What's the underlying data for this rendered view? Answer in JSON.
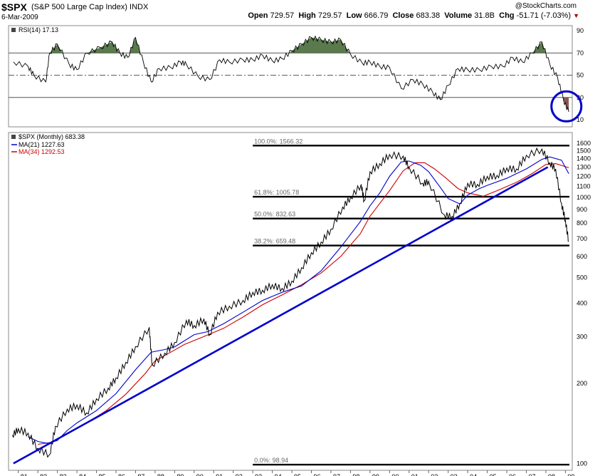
{
  "header": {
    "symbol": "$SPX",
    "name": "(S&P 500 Large Cap Index)",
    "exchange": "INDX",
    "date": "6-Mar-2009",
    "watermark": "@StockCharts.com",
    "quote": {
      "open_label": "Open",
      "open": "729.57",
      "high_label": "High",
      "high": "729.57",
      "low_label": "Low",
      "low": "666.79",
      "close_label": "Close",
      "close": "683.38",
      "volume_label": "Volume",
      "volume": "31.8B",
      "chg_label": "Chg",
      "chg": "-51.71 (-7.03%)"
    }
  },
  "chart_data": [
    {
      "type": "line",
      "panel": "indicator",
      "legend": [
        "RSI(14) 17.13"
      ],
      "ylim": [
        0,
        100
      ],
      "yticks": [
        90,
        70,
        50,
        30,
        10
      ],
      "reference_lines": [
        70,
        50,
        30
      ],
      "overbought_fill": "#5a7a4e",
      "oversold_fill": "#8a5a52",
      "x": [
        1980.75,
        1981.5,
        1981.8,
        1982.4,
        1982.6,
        1983.0,
        1983.6,
        1984.0,
        1984.5,
        1985.2,
        1985.8,
        1986.2,
        1986.6,
        1987.0,
        1987.4,
        1987.8,
        1988.2,
        1988.8,
        1989.3,
        1989.6,
        1990.2,
        1990.8,
        1991.3,
        1991.8,
        1992.5,
        1993.0,
        1993.5,
        1994.0,
        1994.5,
        1995.0,
        1995.5,
        1996.0,
        1996.5,
        1997.0,
        1997.5,
        1998.0,
        1998.6,
        1999.0,
        1999.5,
        2000.0,
        2000.6,
        2001.2,
        2001.7,
        2002.2,
        2002.6,
        2003.0,
        2003.5,
        2004.0,
        2004.6,
        2005.2,
        2005.8,
        2006.3,
        2006.8,
        2007.3,
        2007.8,
        2008.2,
        2008.6,
        2008.9,
        2009.17
      ],
      "values": [
        62,
        58,
        50,
        44,
        70,
        78,
        60,
        55,
        70,
        75,
        80,
        70,
        66,
        84,
        62,
        44,
        56,
        57,
        62,
        60,
        49,
        46,
        64,
        62,
        64,
        64,
        68,
        63,
        65,
        72,
        78,
        84,
        82,
        80,
        82,
        69,
        61,
        62,
        58,
        57,
        38,
        46,
        42,
        35,
        28,
        41,
        56,
        55,
        55,
        58,
        58,
        66,
        62,
        70,
        80,
        60,
        48,
        28,
        17.13
      ]
    },
    {
      "type": "line",
      "panel": "price",
      "title": "$SPX (Monthly) 683.38",
      "legend": [
        "MA(21) 1227.63",
        "MA(34) 1292.53"
      ],
      "y_scale": "log",
      "ylim": [
        96,
        1700
      ],
      "yticks": [
        1600,
        1500,
        1400,
        1300,
        1200,
        1100,
        1000,
        900,
        800,
        700,
        600,
        500,
        400,
        300,
        200,
        100
      ],
      "xlim": [
        1980.5,
        2009.35
      ],
      "xticks": [
        "81",
        "82",
        "83",
        "84",
        "85",
        "86",
        "87",
        "88",
        "89",
        "90",
        "91",
        "92",
        "93",
        "94",
        "95",
        "96",
        "97",
        "98",
        "99",
        "00",
        "01",
        "02",
        "03",
        "04",
        "05",
        "06",
        "07",
        "08",
        "09"
      ],
      "series": [
        {
          "legend": "price",
          "color": "#000000",
          "x": [
            1980.7,
            1981.0,
            1981.5,
            1982.0,
            1982.6,
            1982.9,
            1983.5,
            1984.0,
            1984.5,
            1985.0,
            1985.6,
            1986.0,
            1986.5,
            1987.0,
            1987.7,
            1987.85,
            1988.5,
            1989.0,
            1989.6,
            1990.0,
            1990.5,
            1990.8,
            1991.2,
            1991.8,
            1992.5,
            1993.0,
            1993.5,
            1994.0,
            1994.5,
            1995.0,
            1995.5,
            1996.0,
            1996.5,
            1997.0,
            1997.6,
            1998.0,
            1998.55,
            1998.7,
            1999.0,
            1999.5,
            2000.0,
            2000.7,
            2001.0,
            2001.7,
            2002.0,
            2002.8,
            2003.2,
            2003.6,
            2004.0,
            2004.5,
            2005.0,
            2005.5,
            2006.0,
            2006.5,
            2007.0,
            2007.8,
            2008.2,
            2008.5,
            2008.8,
            2009.0,
            2009.17
          ],
          "values": [
            128,
            135,
            130,
            114,
            108,
            138,
            160,
            166,
            155,
            175,
            192,
            210,
            240,
            275,
            325,
            235,
            260,
            285,
            345,
            330,
            350,
            305,
            370,
            390,
            410,
            440,
            448,
            470,
            455,
            485,
            545,
            620,
            680,
            760,
            920,
            1000,
            1120,
            970,
            1250,
            1340,
            1450,
            1430,
            1300,
            1130,
            1150,
            860,
            850,
            950,
            1130,
            1120,
            1200,
            1210,
            1290,
            1280,
            1440,
            1520,
            1350,
            1280,
            950,
            820,
            683.38
          ]
        },
        {
          "legend": "MA(21) 1227.63",
          "color": "#0000cc",
          "x": [
            1981.5,
            1982.0,
            1982.5,
            1983.0,
            1983.5,
            1984.0,
            1985.0,
            1986.0,
            1987.0,
            1987.8,
            1988.5,
            1989.0,
            1990.0,
            1990.7,
            1991.5,
            1992.5,
            1993.5,
            1994.5,
            1995.5,
            1996.5,
            1997.5,
            1998.5,
            1999.0,
            1999.5,
            2000.0,
            2000.6,
            2001.0,
            2001.6,
            2002.0,
            2002.6,
            2003.0,
            2003.6,
            2004.0,
            2004.6,
            2005.0,
            2006.0,
            2007.0,
            2007.8,
            2008.2,
            2008.8,
            2009.17
          ],
          "values": [
            126,
            121,
            119,
            122,
            133,
            142,
            158,
            183,
            225,
            262,
            268,
            274,
            305,
            313,
            335,
            370,
            410,
            440,
            465,
            530,
            650,
            810,
            930,
            1040,
            1200,
            1360,
            1370,
            1320,
            1250,
            1090,
            990,
            945,
            1020,
            1080,
            1110,
            1180,
            1280,
            1390,
            1420,
            1380,
            1227.63
          ]
        },
        {
          "legend": "MA(34) 1292.53",
          "color": "#cc0000",
          "x": [
            1982.0,
            1982.7,
            1983.5,
            1984.5,
            1985.5,
            1986.5,
            1987.5,
            1988.0,
            1988.8,
            1989.5,
            1990.5,
            1991.5,
            1992.5,
            1993.5,
            1994.5,
            1995.5,
            1996.5,
            1997.5,
            1998.5,
            1999.0,
            1999.5,
            2000.0,
            2000.7,
            2001.3,
            2001.8,
            2002.3,
            2002.9,
            2003.5,
            2004.0,
            2004.8,
            2005.5,
            2006.5,
            2007.3,
            2008.0,
            2008.5,
            2009.17
          ],
          "values": [
            118,
            120,
            129,
            142,
            158,
            182,
            218,
            243,
            262,
            280,
            300,
            322,
            355,
            395,
            430,
            470,
            520,
            600,
            730,
            850,
            950,
            1060,
            1260,
            1350,
            1350,
            1280,
            1180,
            1080,
            1040,
            1010,
            1060,
            1140,
            1230,
            1330,
            1340,
            1292.53
          ]
        },
        {
          "legend": "trendline",
          "color": "#0000cc",
          "x": [
            1980.75,
            2008.1
          ],
          "values": [
            100,
            1300
          ]
        }
      ],
      "fibonacci_levels": [
        {
          "label": "100.0%: 1566.32",
          "value": 1566.32
        },
        {
          "label": "61.8%: 1005.78",
          "value": 1005.78
        },
        {
          "label": "50.0%: 832.63",
          "value": 832.63
        },
        {
          "label": "38.2%: 659.48",
          "value": 659.48
        },
        {
          "label": "0.0%: 98.94",
          "value": 98.94
        }
      ]
    }
  ]
}
